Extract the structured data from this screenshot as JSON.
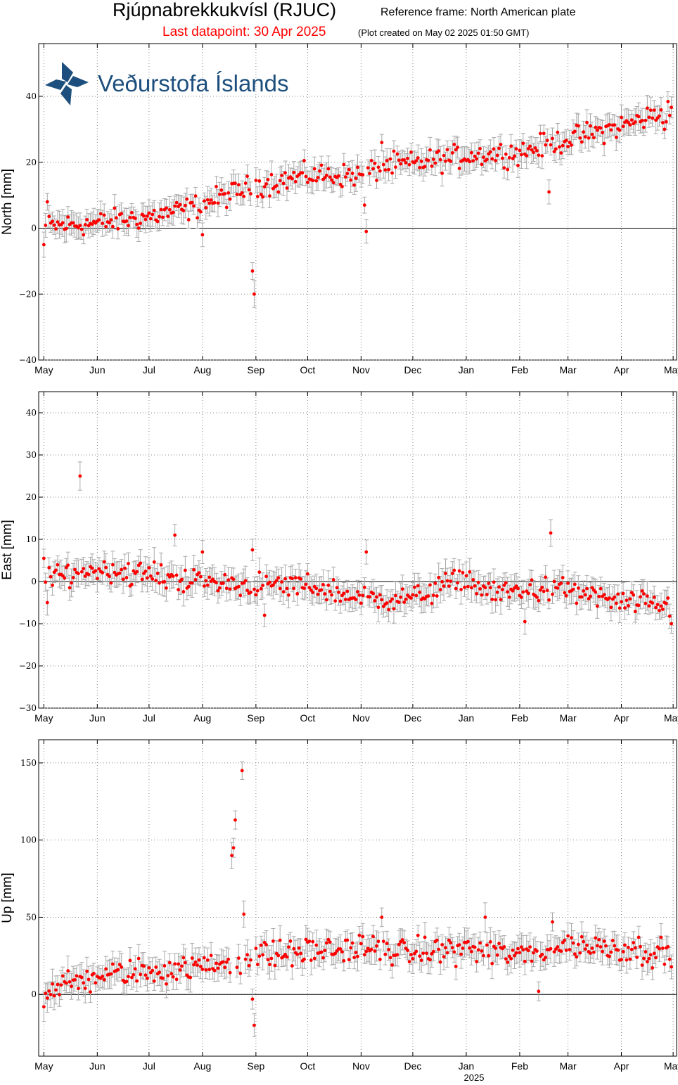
{
  "header": {
    "title": "Rjúpnabrekkukvísl (RJUC)",
    "reference_frame": "Reference frame: North American plate",
    "last_datapoint": "Last datapoint: 30 Apr 2025",
    "plot_created": "(Plot created on May 02 2025 01:50 GMT)"
  },
  "logo": {
    "text": "Veðurstofa Íslands",
    "color": "#1d4f7e"
  },
  "colors": {
    "point": "#ff0000",
    "errorbar": "#aaaaaa",
    "zero_line": "#000000",
    "grid": "#888888"
  },
  "x_axis": {
    "months": [
      "May",
      "Jun",
      "Jul",
      "Aug",
      "Sep",
      "Oct",
      "Nov",
      "Dec",
      "Jan",
      "Feb",
      "Mar",
      "Apr",
      "May"
    ],
    "year_label": "2025",
    "range": [
      "2024-05-01",
      "2025-05-01"
    ]
  },
  "chart_data": [
    {
      "type": "scatter",
      "component": "north",
      "ylabel": "North [mm]",
      "ylim": [
        -40,
        56
      ],
      "yticks": [
        -40,
        -20,
        0,
        20,
        40
      ],
      "ytick_labels": [
        "−40",
        "−20",
        "0",
        "20",
        "40"
      ],
      "grid": true,
      "error_bar_mm": 3,
      "trend": [
        {
          "date": "2024-05-01",
          "value": 0.5
        },
        {
          "date": "2024-06-01",
          "value": 1.5
        },
        {
          "date": "2024-07-01",
          "value": 3.5
        },
        {
          "date": "2024-07-25",
          "value": 6
        },
        {
          "date": "2024-08-10",
          "value": 9
        },
        {
          "date": "2024-09-01",
          "value": 13
        },
        {
          "date": "2024-10-01",
          "value": 16
        },
        {
          "date": "2024-11-01",
          "value": 16
        },
        {
          "date": "2024-11-15",
          "value": 19
        },
        {
          "date": "2024-12-01",
          "value": 19.5
        },
        {
          "date": "2025-01-01",
          "value": 22
        },
        {
          "date": "2025-02-01",
          "value": 23
        },
        {
          "date": "2025-03-01",
          "value": 27
        },
        {
          "date": "2025-04-01",
          "value": 31
        },
        {
          "date": "2025-04-30",
          "value": 36
        }
      ],
      "scatter_mm": 2.5,
      "outliers": [
        {
          "date": "2024-05-01",
          "value": -5
        },
        {
          "date": "2024-05-03",
          "value": 8
        },
        {
          "date": "2024-08-01",
          "value": -2
        },
        {
          "date": "2024-08-30",
          "value": -13
        },
        {
          "date": "2024-08-31",
          "value": -20
        },
        {
          "date": "2024-11-03",
          "value": 7
        },
        {
          "date": "2024-11-04",
          "value": -1
        },
        {
          "date": "2024-11-13",
          "value": 26
        },
        {
          "date": "2025-02-18",
          "value": 11
        },
        {
          "date": "2025-04-26",
          "value": 30
        }
      ]
    },
    {
      "type": "scatter",
      "component": "east",
      "ylabel": "East [mm]",
      "ylim": [
        -30,
        45
      ],
      "yticks": [
        -30,
        -20,
        -10,
        0,
        10,
        20,
        30,
        40
      ],
      "ytick_labels": [
        "−30",
        "−20",
        "−10",
        "0",
        "10",
        "20",
        "30",
        "40"
      ],
      "grid": true,
      "error_bar_mm": 2.5,
      "trend": [
        {
          "date": "2024-05-01",
          "value": 0.5
        },
        {
          "date": "2024-06-01",
          "value": 3
        },
        {
          "date": "2024-07-01",
          "value": 1.5
        },
        {
          "date": "2024-08-01",
          "value": 0
        },
        {
          "date": "2024-09-01",
          "value": -1
        },
        {
          "date": "2024-10-01",
          "value": -1
        },
        {
          "date": "2024-11-01",
          "value": -4
        },
        {
          "date": "2024-12-01",
          "value": -4
        },
        {
          "date": "2024-12-31",
          "value": 1
        },
        {
          "date": "2025-01-15",
          "value": -3
        },
        {
          "date": "2025-02-01",
          "value": -2
        },
        {
          "date": "2025-03-01",
          "value": -2
        },
        {
          "date": "2025-04-01",
          "value": -5
        },
        {
          "date": "2025-04-30",
          "value": -6
        }
      ],
      "scatter_mm": 2,
      "outliers": [
        {
          "date": "2024-05-01",
          "value": 5.5
        },
        {
          "date": "2024-05-03",
          "value": -5
        },
        {
          "date": "2024-05-22",
          "value": 25
        },
        {
          "date": "2024-07-16",
          "value": 11
        },
        {
          "date": "2024-08-01",
          "value": 7
        },
        {
          "date": "2024-08-30",
          "value": 7.5
        },
        {
          "date": "2024-09-06",
          "value": -8
        },
        {
          "date": "2024-11-04",
          "value": 7
        },
        {
          "date": "2025-02-19",
          "value": 11.5
        },
        {
          "date": "2025-02-04",
          "value": -9.5
        },
        {
          "date": "2025-04-30",
          "value": -10
        }
      ]
    },
    {
      "type": "scatter",
      "component": "up",
      "ylabel": "Up [mm]",
      "ylim": [
        -40,
        165
      ],
      "yticks": [
        0,
        50,
        100,
        150
      ],
      "ytick_labels": [
        "0",
        "50",
        "100",
        "150"
      ],
      "grid": true,
      "error_bar_mm": 7,
      "trend": [
        {
          "date": "2024-05-01",
          "value": 2
        },
        {
          "date": "2024-06-01",
          "value": 12
        },
        {
          "date": "2024-07-01",
          "value": 15
        },
        {
          "date": "2024-08-01",
          "value": 18
        },
        {
          "date": "2024-09-01",
          "value": 25
        },
        {
          "date": "2024-10-01",
          "value": 28
        },
        {
          "date": "2024-11-01",
          "value": 30
        },
        {
          "date": "2024-12-01",
          "value": 27
        },
        {
          "date": "2025-01-01",
          "value": 30
        },
        {
          "date": "2025-02-01",
          "value": 25
        },
        {
          "date": "2025-03-01",
          "value": 32
        },
        {
          "date": "2025-04-01",
          "value": 30
        },
        {
          "date": "2025-04-30",
          "value": 26
        }
      ],
      "scatter_mm": 6,
      "outliers": [
        {
          "date": "2024-05-01",
          "value": -8
        },
        {
          "date": "2024-08-18",
          "value": 90
        },
        {
          "date": "2024-08-19",
          "value": 95
        },
        {
          "date": "2024-08-20",
          "value": 113
        },
        {
          "date": "2024-08-24",
          "value": 145
        },
        {
          "date": "2024-08-25",
          "value": 52
        },
        {
          "date": "2024-08-30",
          "value": -3
        },
        {
          "date": "2024-08-31",
          "value": -20
        },
        {
          "date": "2024-11-13",
          "value": 50
        },
        {
          "date": "2025-01-12",
          "value": 50
        },
        {
          "date": "2025-02-20",
          "value": 47
        },
        {
          "date": "2025-02-12",
          "value": 2
        }
      ]
    }
  ]
}
